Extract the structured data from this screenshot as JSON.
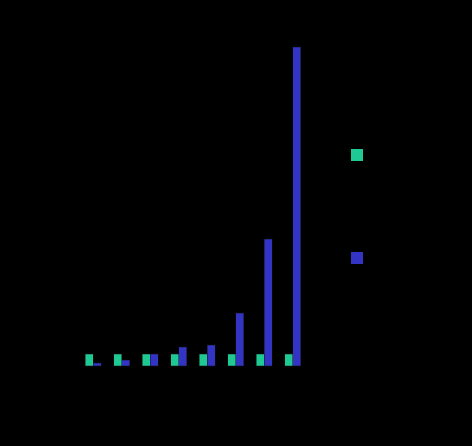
{
  "chart_data": {
    "type": "bar",
    "categories": [
      null,
      null,
      null,
      null,
      null,
      null,
      null,
      null
    ],
    "series": [
      {
        "color": "#1fc994",
        "values": [
          12,
          12,
          12,
          12,
          12,
          12,
          12,
          12
        ]
      },
      {
        "color": "#3333c4",
        "values": [
          3,
          6,
          12,
          19,
          21,
          53,
          127,
          319
        ]
      }
    ],
    "ylim": [
      0,
      320
    ]
  }
}
